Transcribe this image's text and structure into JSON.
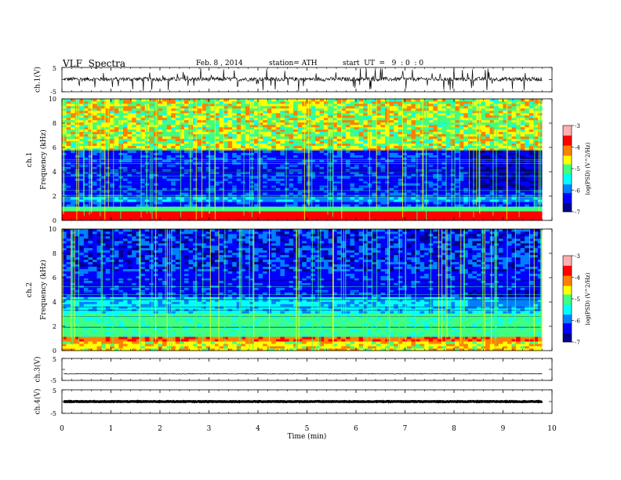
{
  "header": {
    "title": "VLF  Spectra",
    "date": "Feb. 8 , 2014",
    "station": "station= ATH",
    "start_ut": "start  UT  =   9  : 0  : 0"
  },
  "chart_data": [
    {
      "id": "ch1",
      "type": "line",
      "ylabel": "ch.1(V)",
      "ylim": [
        -5,
        5
      ],
      "yticks": [
        "5",
        "-5"
      ],
      "note": "noisy waveform around ~0 V with spikes to about -5 V"
    },
    {
      "id": "spec1",
      "type": "heatmap",
      "ylabel": "Frequency (kHz)",
      "ylabel_channel": "ch.1",
      "ylim": [
        0,
        10
      ],
      "yticks": [
        "0",
        "2",
        "4",
        "6",
        "8",
        "10"
      ],
      "colorbar": {
        "label": "log(PSD) (V^2/Hz)",
        "range": [
          -7,
          -3
        ],
        "ticks": [
          "-3",
          "-4",
          "-5",
          "-6",
          "-7"
        ]
      }
    },
    {
      "id": "spec2",
      "type": "heatmap",
      "ylabel": "Frequency (kHz)",
      "ylabel_channel": "ch.2",
      "ylim": [
        0,
        10
      ],
      "yticks": [
        "0",
        "2",
        "4",
        "6",
        "8",
        "10"
      ],
      "colorbar": {
        "label": "log(PSD) (V^2/Hz)",
        "range": [
          -7,
          -3
        ],
        "ticks": [
          "-3",
          "-4",
          "-5",
          "-6",
          "-7"
        ]
      }
    },
    {
      "id": "ch3",
      "type": "line",
      "ylabel": "ch.3(V)",
      "ylim": [
        -5,
        5
      ],
      "yticks": [
        "5",
        "-5"
      ],
      "note": "flat trace near -2 V"
    },
    {
      "id": "ch4",
      "type": "line",
      "ylabel": "ch.4(V)",
      "ylim": [
        -5,
        5
      ],
      "yticks": [
        "5",
        "-5"
      ],
      "note": "thick flat trace near 0 V"
    }
  ],
  "x_axis": {
    "label": "Time  (min)",
    "range": [
      0,
      10
    ],
    "ticks": [
      "0",
      "1",
      "2",
      "3",
      "4",
      "5",
      "6",
      "7",
      "8",
      "9",
      "10"
    ],
    "data_end": 9.8
  },
  "colors": {
    "colormap": [
      "#00008b",
      "#0000ff",
      "#0080ff",
      "#00ffff",
      "#40ff80",
      "#ffff00",
      "#ff8000",
      "#ff0000",
      "#ffb0b0",
      "#ffffff"
    ]
  }
}
